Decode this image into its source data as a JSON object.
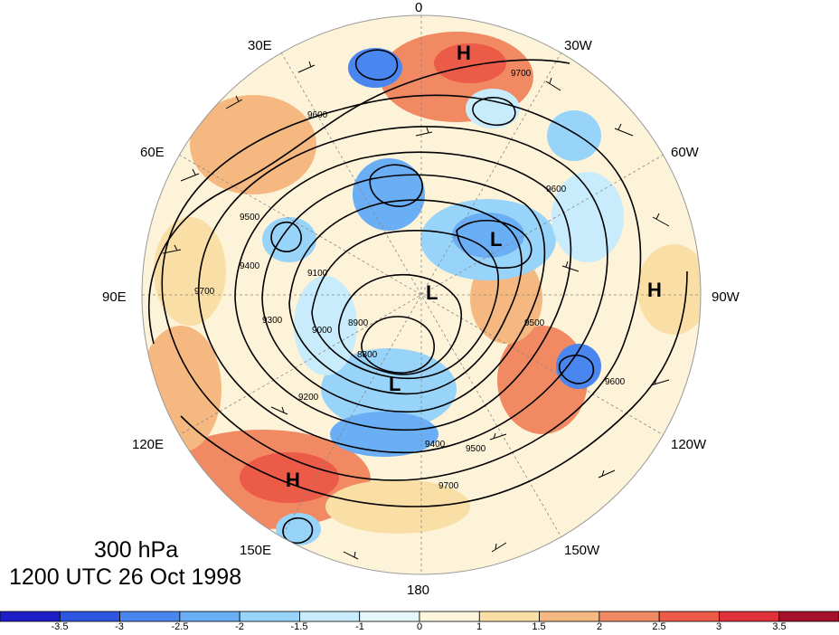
{
  "map": {
    "title": "300 hPa",
    "subtitle": "1200 UTC 26 Oct 1998",
    "longitude_labels": {
      "top": "0",
      "upper_left": "30E",
      "upper_right": "30W",
      "mid_upper_left": "60E",
      "mid_upper_right": "60W",
      "left": "90E",
      "right": "90W",
      "lower_left": "120E",
      "lower_right": "120W",
      "bottom_left": "150E",
      "bottom_right": "150W",
      "bottom": "180"
    },
    "pressure_centers": [
      "H",
      "H",
      "H",
      "L",
      "L",
      "L"
    ],
    "contour_labels": [
      "9700",
      "9600",
      "9500",
      "9400",
      "9300",
      "9200",
      "9100",
      "9000",
      "8900",
      "8800",
      "9700",
      "9600",
      "9500",
      "9400",
      "9700",
      "9600",
      "9500"
    ]
  },
  "colorbar": {
    "ticks": [
      "-3.5",
      "-3",
      "-2.5",
      "-2",
      "-1.5",
      "-1",
      "0",
      "1",
      "1.5",
      "2",
      "2.5",
      "3",
      "3.5"
    ],
    "colors": [
      "#1e1ec8",
      "#2e55e0",
      "#4a86f0",
      "#6aaef5",
      "#98d4fa",
      "#c8ecfb",
      "#e6f6fb",
      "#fdf6dc",
      "#f9dfa6",
      "#f5b880",
      "#f18a62",
      "#ec5a48",
      "#e0303a",
      "#a5102a"
    ]
  }
}
